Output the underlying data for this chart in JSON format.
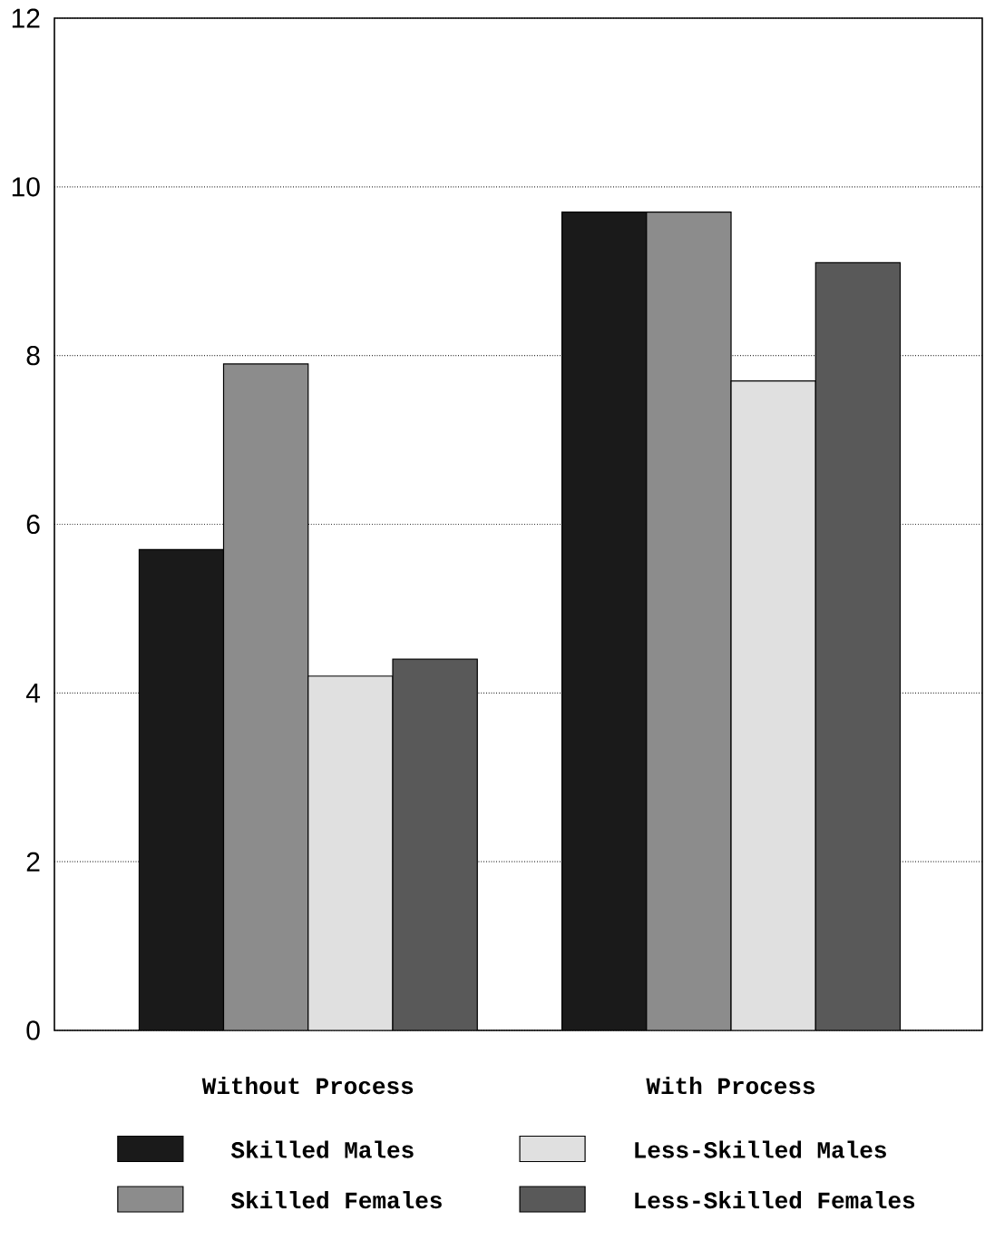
{
  "chart_data": {
    "type": "bar",
    "categories": [
      "Without Process",
      "With Process"
    ],
    "series": [
      {
        "name": "Skilled Males",
        "color": "#1a1a1a",
        "values": [
          5.7,
          9.7
        ]
      },
      {
        "name": "Skilled Females",
        "color": "#8c8c8c",
        "values": [
          7.9,
          9.7
        ]
      },
      {
        "name": "Less-Skilled Males",
        "color": "#e0e0e0",
        "values": [
          4.2,
          7.7
        ]
      },
      {
        "name": "Less-Skilled Females",
        "color": "#595959",
        "values": [
          4.4,
          9.1
        ]
      }
    ],
    "ylim": [
      0,
      12
    ],
    "yticks": [
      0,
      2,
      4,
      6,
      8,
      10,
      12
    ],
    "grid": "y",
    "legend": "bottom"
  }
}
